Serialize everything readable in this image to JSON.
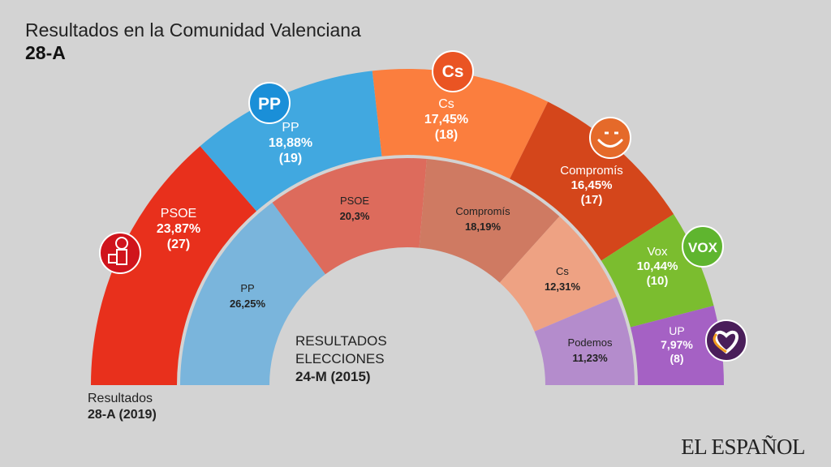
{
  "title": "Resultados en la Comunidad Valenciana",
  "subtitle": "28-A",
  "outer_legend": {
    "line1": "Resultados",
    "line2": "28-A (2019)"
  },
  "inner_legend": {
    "line1": "RESULTADOS",
    "line2": "ELECCIONES",
    "line3": "24-M (2015)"
  },
  "brand": "EL ESPAÑOL",
  "chart_data": [
    {
      "type": "pie",
      "subtype": "semicircle-parliament-outer-ring",
      "title": "Resultados 28-A (2019)",
      "categories": [
        "PSOE",
        "PP",
        "Cs",
        "Compromís",
        "Vox",
        "UP"
      ],
      "percent_labels": [
        "23,87%",
        "18,88%",
        "17,45%",
        "16,45%",
        "10,44%",
        "7,97%"
      ],
      "seat_labels": [
        "(27)",
        "(19)",
        "(18)",
        "(17)",
        "(10)",
        "(8)"
      ],
      "values": [
        23.87,
        18.88,
        17.45,
        16.45,
        10.44,
        7.97
      ],
      "seats": [
        27,
        19,
        18,
        17,
        10,
        8
      ],
      "colors": [
        "#e8301c",
        "#41a8e0",
        "#fb7e3e",
        "#d4461b",
        "#7bbd2f",
        "#a561c4"
      ],
      "logos": [
        "psoe-logo",
        "pp-logo",
        "cs-logo",
        "compromis-logo",
        "vox-logo",
        "up-logo"
      ],
      "logo_text": [
        "",
        "PP",
        "Cs",
        "",
        "VOX",
        ""
      ]
    },
    {
      "type": "pie",
      "subtype": "semicircle-inner-ring",
      "title": "Resultados elecciones 24-M (2015)",
      "categories": [
        "PP",
        "PSOE",
        "Compromís",
        "Cs",
        "Podemos"
      ],
      "percent_labels": [
        "26,25%",
        "20,3%",
        "18,19%",
        "12,31%",
        "11,23%"
      ],
      "values": [
        26.25,
        20.3,
        18.19,
        12.31,
        11.23
      ],
      "colors": [
        "#7ab5dc",
        "#dd6b5c",
        "#cf7a62",
        "#eea283",
        "#b48ccc"
      ]
    }
  ]
}
